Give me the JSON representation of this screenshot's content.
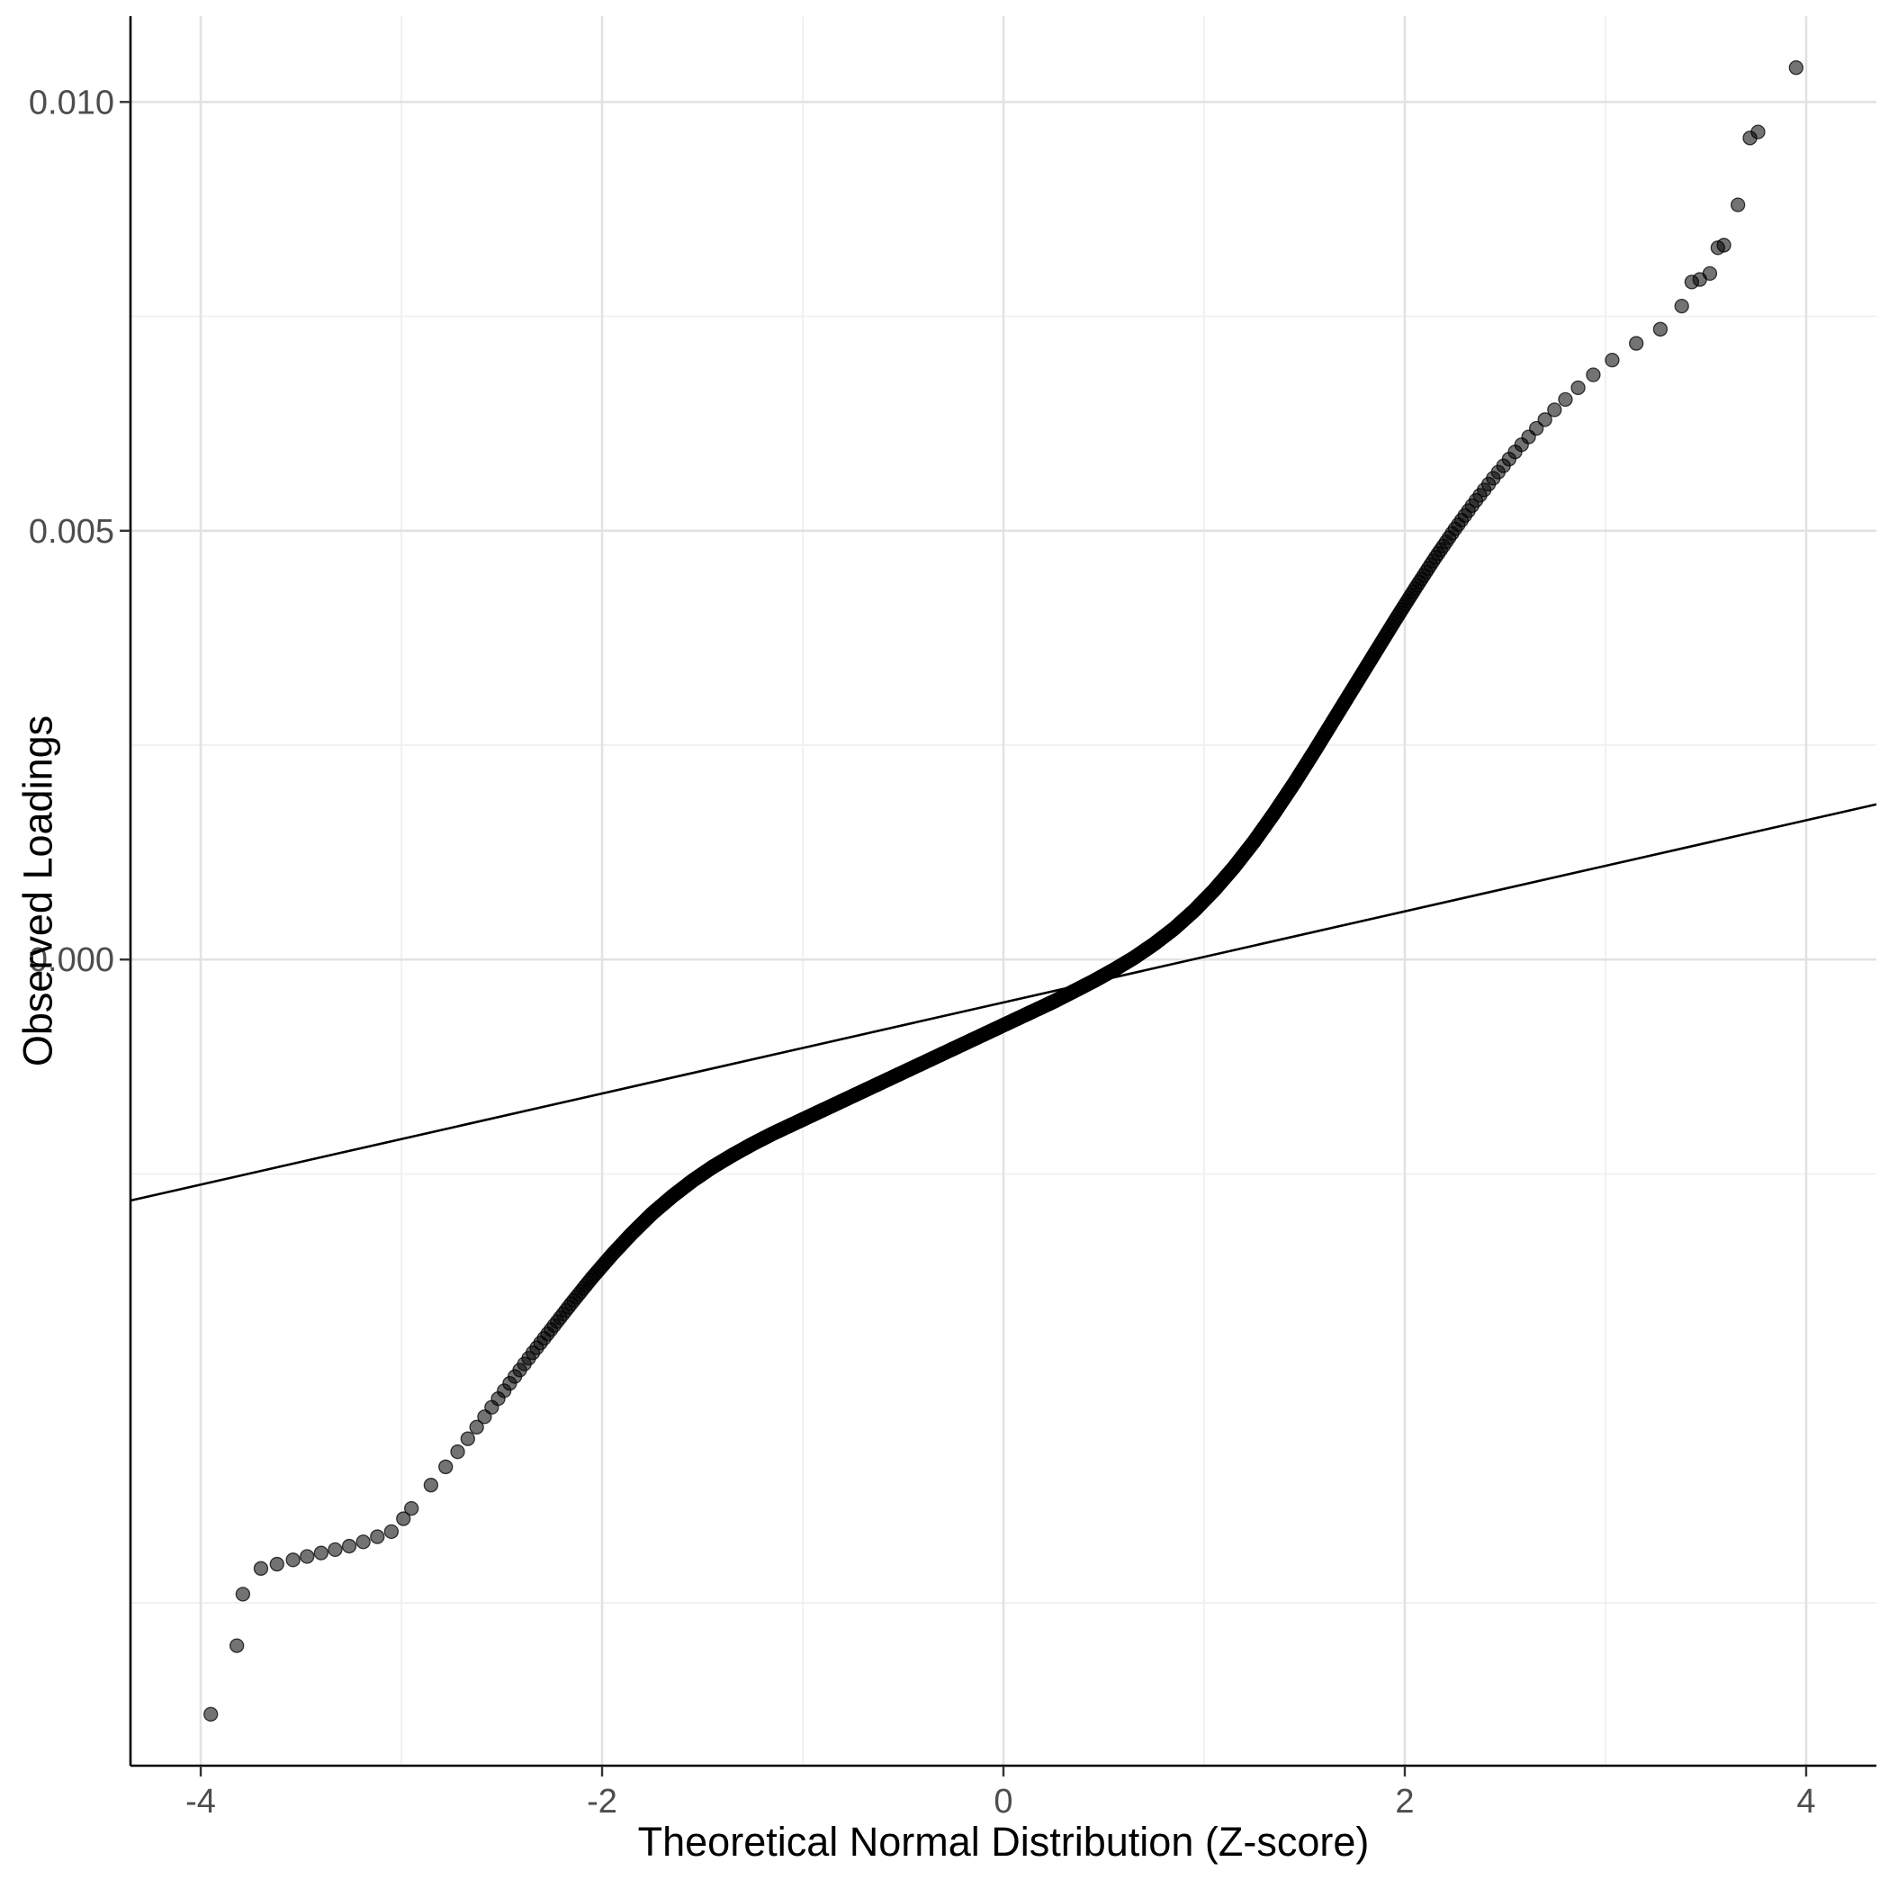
{
  "figure": {
    "background_color": "#FFFFFF"
  },
  "chart_data": {
    "type": "scatter",
    "subtype": "qq-plot",
    "title": "",
    "xlabel": "Theoretical Normal Distribution (Z-score)",
    "ylabel": "Observed Loadings",
    "xlim": [
      -4.35,
      4.35
    ],
    "ylim": [
      -0.0094,
      0.011
    ],
    "grid": true,
    "legend": "none",
    "x_ticks": {
      "values": [
        -4,
        -2,
        0,
        2,
        4
      ],
      "labels": [
        "-4",
        "-2",
        "0",
        "2",
        "4"
      ]
    },
    "y_ticks": {
      "values": [
        0.0,
        0.005,
        0.01
      ],
      "labels": [
        "0.000",
        "0.005",
        "0.010"
      ]
    },
    "x_minor_ticks": [
      -3,
      -1,
      1,
      3
    ],
    "y_minor_ticks": [
      -0.0075,
      -0.0025,
      0.0025,
      0.0075
    ],
    "n_points": 2000,
    "point_color": "#000000",
    "point_opacity": 0.55,
    "point_stroke_color": "#000000",
    "point_radius_px": 7.5,
    "reference_line": {
      "x1": -4.35,
      "y1": -0.00281,
      "x2": 4.35,
      "y2": 0.00181,
      "color": "#000000"
    },
    "style": {
      "major_grid_color": "#e2e2e2",
      "minor_grid_color": "#f0f0f0",
      "axis_line_color": "#000000",
      "tick_mark_color": "#333333",
      "tick_label_color": "#4d4d4d"
    },
    "curve_anchors": [
      [
        -2.95,
        -0.0064
      ],
      [
        -2.85,
        -0.00612
      ],
      [
        -2.75,
        -0.00583
      ],
      [
        -2.65,
        -0.00553
      ],
      [
        -2.55,
        -0.00522
      ],
      [
        -2.45,
        -0.00491
      ],
      [
        -2.35,
        -0.0046
      ],
      [
        -2.25,
        -0.0043
      ],
      [
        -2.15,
        -0.004
      ],
      [
        -2.05,
        -0.00371
      ],
      [
        -1.95,
        -0.00344
      ],
      [
        -1.85,
        -0.00319
      ],
      [
        -1.75,
        -0.00296
      ],
      [
        -1.65,
        -0.00276
      ],
      [
        -1.55,
        -0.00258
      ],
      [
        -1.45,
        -0.00242
      ],
      [
        -1.35,
        -0.00228
      ],
      [
        -1.25,
        -0.00215
      ],
      [
        -1.15,
        -0.00203
      ],
      [
        -1.05,
        -0.00192
      ],
      [
        -0.95,
        -0.00181
      ],
      [
        -0.85,
        -0.0017
      ],
      [
        -0.75,
        -0.00159
      ],
      [
        -0.65,
        -0.00148
      ],
      [
        -0.55,
        -0.00137
      ],
      [
        -0.45,
        -0.00126
      ],
      [
        -0.35,
        -0.00115
      ],
      [
        -0.25,
        -0.00104
      ],
      [
        -0.15,
        -0.00093
      ],
      [
        -0.05,
        -0.00082
      ],
      [
        0.05,
        -0.00071
      ],
      [
        0.15,
        -0.0006
      ],
      [
        0.25,
        -0.00049
      ],
      [
        0.35,
        -0.00037
      ],
      [
        0.45,
        -0.00025
      ],
      [
        0.55,
        -0.00012
      ],
      [
        0.65,
        2e-05
      ],
      [
        0.75,
        0.00018
      ],
      [
        0.85,
        0.00036
      ],
      [
        0.95,
        0.00057
      ],
      [
        1.05,
        0.00081
      ],
      [
        1.15,
        0.00108
      ],
      [
        1.25,
        0.00138
      ],
      [
        1.35,
        0.00171
      ],
      [
        1.45,
        0.00206
      ],
      [
        1.55,
        0.00243
      ],
      [
        1.65,
        0.00281
      ],
      [
        1.75,
        0.00319
      ],
      [
        1.85,
        0.00357
      ],
      [
        1.95,
        0.00395
      ],
      [
        2.05,
        0.00432
      ],
      [
        2.15,
        0.00468
      ],
      [
        2.25,
        0.00502
      ],
      [
        2.35,
        0.00534
      ],
      [
        2.45,
        0.00564
      ],
      [
        2.55,
        0.00592
      ],
      [
        2.65,
        0.00618
      ],
      [
        2.75,
        0.00642
      ],
      [
        2.85,
        0.00664
      ],
      [
        2.95,
        0.00684
      ],
      [
        3.05,
        0.00702
      ],
      [
        3.15,
        0.00718
      ],
      [
        3.25,
        0.00732
      ],
      [
        3.32,
        0.00741
      ]
    ],
    "lower_tail_points": [
      [
        -3.95,
        -0.0088
      ],
      [
        -3.82,
        -0.008
      ],
      [
        -3.79,
        -0.0074
      ],
      [
        -3.7,
        -0.0071
      ],
      [
        -3.62,
        -0.00705
      ],
      [
        -3.54,
        -0.007
      ],
      [
        -3.47,
        -0.00696
      ],
      [
        -3.4,
        -0.00692
      ],
      [
        -3.33,
        -0.00688
      ],
      [
        -3.26,
        -0.00684
      ],
      [
        -3.19,
        -0.00679
      ],
      [
        -3.12,
        -0.00673
      ],
      [
        -3.05,
        -0.00667
      ],
      [
        -2.99,
        -0.00652
      ]
    ],
    "upper_tail_points": [
      [
        3.38,
        0.00762
      ],
      [
        3.43,
        0.0079
      ],
      [
        3.47,
        0.00793
      ],
      [
        3.52,
        0.008
      ],
      [
        3.56,
        0.0083
      ],
      [
        3.59,
        0.00833
      ],
      [
        3.66,
        0.0088
      ],
      [
        3.72,
        0.00958
      ],
      [
        3.76,
        0.00965
      ],
      [
        3.95,
        0.0104
      ]
    ]
  }
}
